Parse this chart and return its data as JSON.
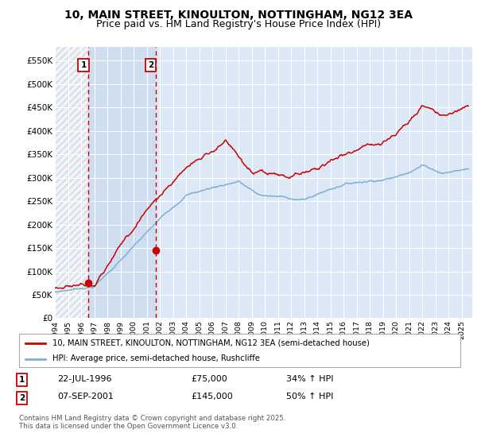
{
  "title": "10, MAIN STREET, KINOULTON, NOTTINGHAM, NG12 3EA",
  "subtitle": "Price paid vs. HM Land Registry's House Price Index (HPI)",
  "ylim": [
    0,
    580000
  ],
  "yticks": [
    0,
    50000,
    100000,
    150000,
    200000,
    250000,
    300000,
    350000,
    400000,
    450000,
    500000,
    550000
  ],
  "ytick_labels": [
    "£0",
    "£50K",
    "£100K",
    "£150K",
    "£200K",
    "£250K",
    "£300K",
    "£350K",
    "£400K",
    "£450K",
    "£500K",
    "£550K"
  ],
  "background_color": "#ffffff",
  "plot_bg_color": "#dce8f5",
  "grid_color": "#ffffff",
  "purchase1_year": 1996.55,
  "purchase1_price": 75000,
  "purchase2_year": 2001.68,
  "purchase2_price": 145000,
  "red_line_color": "#cc0000",
  "blue_line_color": "#7ab0d4",
  "legend_line1": "10, MAIN STREET, KINOULTON, NOTTINGHAM, NG12 3EA (semi-detached house)",
  "legend_line2": "HPI: Average price, semi-detached house, Rushcliffe",
  "annotation1_date": "22-JUL-1996",
  "annotation1_price": "£75,000",
  "annotation1_hpi": "34% ↑ HPI",
  "annotation2_date": "07-SEP-2001",
  "annotation2_price": "£145,000",
  "annotation2_hpi": "50% ↑ HPI",
  "footer": "Contains HM Land Registry data © Crown copyright and database right 2025.\nThis data is licensed under the Open Government Licence v3.0.",
  "title_fontsize": 10,
  "subtitle_fontsize": 9,
  "xmin": 1994,
  "xmax": 2025.8
}
